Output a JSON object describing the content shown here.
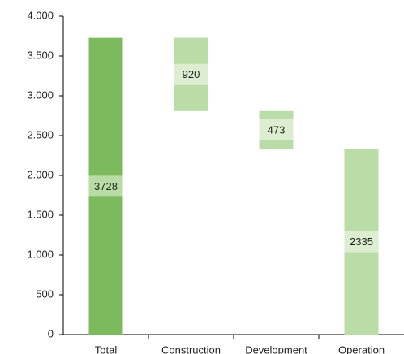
{
  "chart_data": {
    "type": "waterfall",
    "categories": [
      "Total",
      "Construction",
      "Development",
      "Operation"
    ],
    "values": [
      3728,
      920,
      473,
      2335
    ],
    "colors": [
      "#7dba5e",
      "#badca6",
      "#badca6",
      "#badca6"
    ],
    "ylim": [
      0,
      4000
    ],
    "yticks": [
      0,
      500,
      {
        "value": 1000,
        "label": "1.000"
      },
      {
        "value": 1500,
        "label": "1.500"
      },
      {
        "value": 2000,
        "label": "2.000"
      },
      {
        "value": 2500,
        "label": "2.500"
      },
      {
        "value": 3000,
        "label": "3.000"
      },
      {
        "value": 3500,
        "label": "3.500"
      },
      {
        "value": 4000,
        "label": "4.000"
      }
    ]
  }
}
